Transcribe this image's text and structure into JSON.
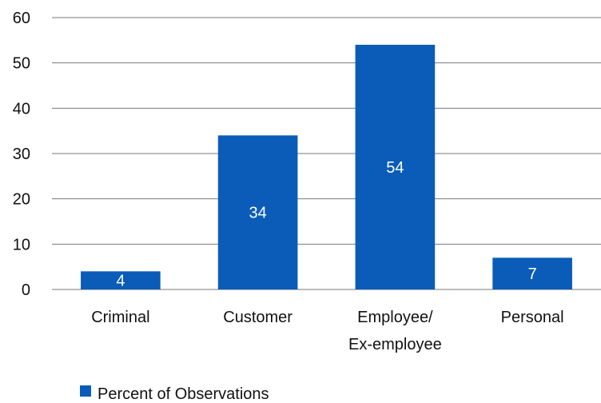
{
  "chart_data": {
    "type": "bar",
    "categories": [
      [
        "Criminal"
      ],
      [
        "Customer"
      ],
      [
        "Employee/",
        "Ex-employee"
      ],
      [
        "Personal"
      ]
    ],
    "series": [
      {
        "name": "Percent of Observations",
        "values": [
          4,
          34,
          54,
          7
        ],
        "color": "#0a5cb8"
      }
    ],
    "ylim": [
      0,
      60
    ],
    "yticks": [
      0,
      10,
      20,
      30,
      40,
      50,
      60
    ],
    "grid": true,
    "legend_position": "bottom-left",
    "title": "",
    "xlabel": "",
    "ylabel": ""
  }
}
